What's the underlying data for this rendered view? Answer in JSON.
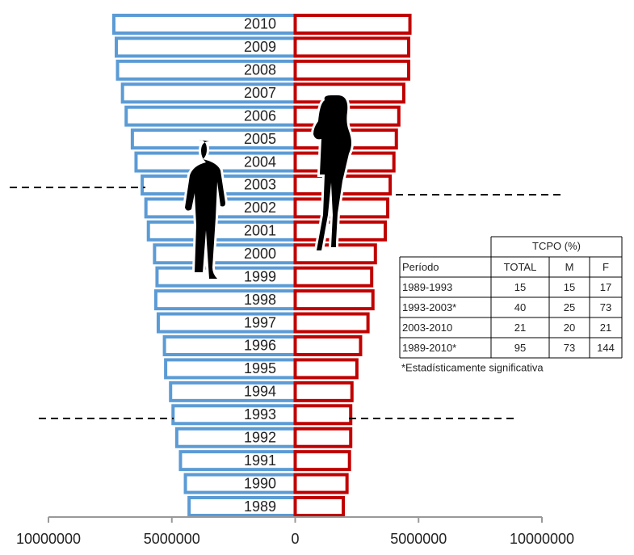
{
  "chart_data": {
    "type": "pyramid",
    "categories": [
      "1989",
      "1990",
      "1991",
      "1992",
      "1993",
      "1994",
      "1995",
      "1996",
      "1997",
      "1998",
      "1999",
      "2000",
      "2001",
      "2002",
      "2003",
      "2004",
      "2005",
      "2006",
      "2007",
      "2008",
      "2009",
      "2010"
    ],
    "series": [
      {
        "color": "#5b9bd5",
        "values": [
          -4300000,
          -4450000,
          -4650000,
          -4800000,
          -4950000,
          -5050000,
          -5250000,
          -5300000,
          -5550000,
          -5650000,
          -5600000,
          -5700000,
          -5950000,
          -6050000,
          -6200000,
          -6450000,
          -6600000,
          -6850000,
          -7000000,
          -7200000,
          -7250000,
          -7350000
        ]
      },
      {
        "color": "#c00000",
        "values": [
          1950000,
          2100000,
          2200000,
          2250000,
          2250000,
          2300000,
          2500000,
          2650000,
          2950000,
          3150000,
          3100000,
          3250000,
          3650000,
          3750000,
          3850000,
          4000000,
          4100000,
          4200000,
          4400000,
          4600000,
          4600000,
          4650000
        ]
      }
    ],
    "xlim": [
      -10000000,
      10000000
    ],
    "xticks": [
      {
        "value": -10000000,
        "label": "10000000"
      },
      {
        "value": -5000000,
        "label": "5000000"
      },
      0,
      5000000,
      10000000
    ],
    "table": {
      "title": "TCPO (%)",
      "columns": [
        "Período",
        "TOTAL",
        "M",
        "F"
      ],
      "rows": [
        [
          "1989-1993",
          15,
          15,
          17
        ],
        [
          "1993-2003*",
          40,
          25,
          73
        ],
        [
          "2003-2010",
          21,
          20,
          21
        ],
        [
          "1989-2010*",
          95,
          73,
          144
        ]
      ],
      "note": "*Estadísticamente significativa"
    }
  }
}
